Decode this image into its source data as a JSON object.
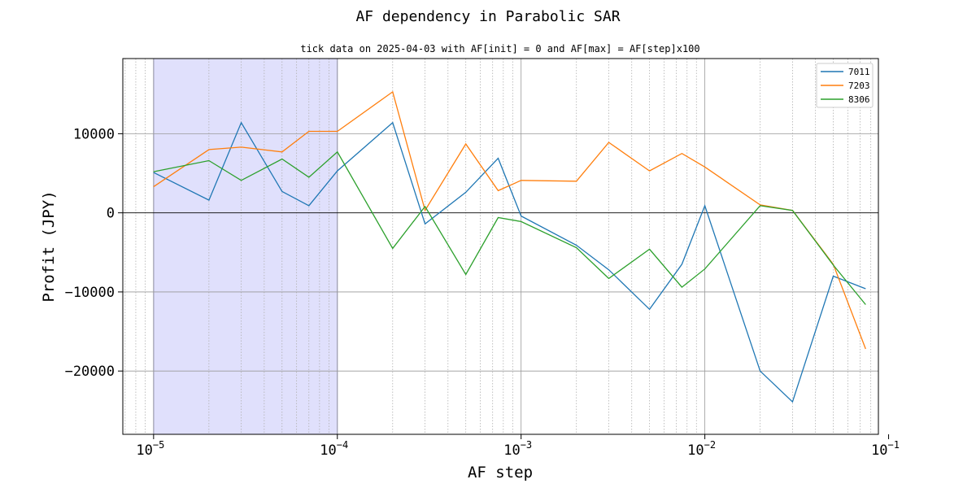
{
  "chart_data": {
    "type": "line",
    "title": "AF dependency in Parabolic SAR",
    "subtitle": "tick data on 2025-04-03 with AF[init] = 0 and AF[max] = AF[step]x100",
    "xlabel": "AF step",
    "ylabel": "Profit (JPY)",
    "xscale": "log",
    "xlim": [
      6.8e-06,
      0.088
    ],
    "ylim": [
      -28000,
      19500
    ],
    "xticks": [
      {
        "value": 1e-05,
        "base": "10",
        "exp": "−5"
      },
      {
        "value": 0.0001,
        "base": "10",
        "exp": "−4"
      },
      {
        "value": 0.001,
        "base": "10",
        "exp": "−3"
      },
      {
        "value": 0.01,
        "base": "10",
        "exp": "−2"
      },
      {
        "value": 0.1,
        "base": "10",
        "exp": "−1"
      }
    ],
    "yticks": [
      {
        "value": -20000,
        "label": "−20000"
      },
      {
        "value": -10000,
        "label": "−10000"
      },
      {
        "value": 0,
        "label": "0"
      },
      {
        "value": 10000,
        "label": "10000"
      }
    ],
    "highlight_span": [
      1e-05,
      0.0001
    ],
    "highlight_color": "#e0e0fc",
    "highlight_edge": "#8a8acf",
    "grid": true,
    "legend_position": "upper right",
    "x": [
      1e-05,
      2e-05,
      3e-05,
      5e-05,
      7e-05,
      0.0001,
      0.0002,
      0.0003,
      0.0005,
      0.00075,
      0.001,
      0.002,
      0.003,
      0.005,
      0.0075,
      0.01,
      0.02,
      0.03,
      0.05,
      0.075
    ],
    "series": [
      {
        "name": "7011",
        "color": "#1f77b4",
        "values": [
          5100,
          1600,
          11400,
          2700,
          900,
          5300,
          11400,
          -1400,
          2600,
          6900,
          -400,
          -4100,
          -7200,
          -12200,
          -6500,
          900,
          -20000,
          -23900,
          -8000,
          -9600
        ]
      },
      {
        "name": "7203",
        "color": "#ff7f0e",
        "values": [
          3300,
          8000,
          8300,
          7700,
          10300,
          10300,
          15300,
          300,
          8700,
          2800,
          4100,
          4000,
          8900,
          5300,
          7500,
          5800,
          1000,
          300,
          -6500,
          -17200
        ]
      },
      {
        "name": "8306",
        "color": "#2ca02c",
        "values": [
          5200,
          6600,
          4100,
          6800,
          4500,
          7700,
          -4500,
          800,
          -7800,
          -600,
          -1100,
          -4400,
          -8300,
          -4600,
          -9400,
          -7100,
          900,
          300,
          -6600,
          -11600
        ]
      }
    ]
  }
}
